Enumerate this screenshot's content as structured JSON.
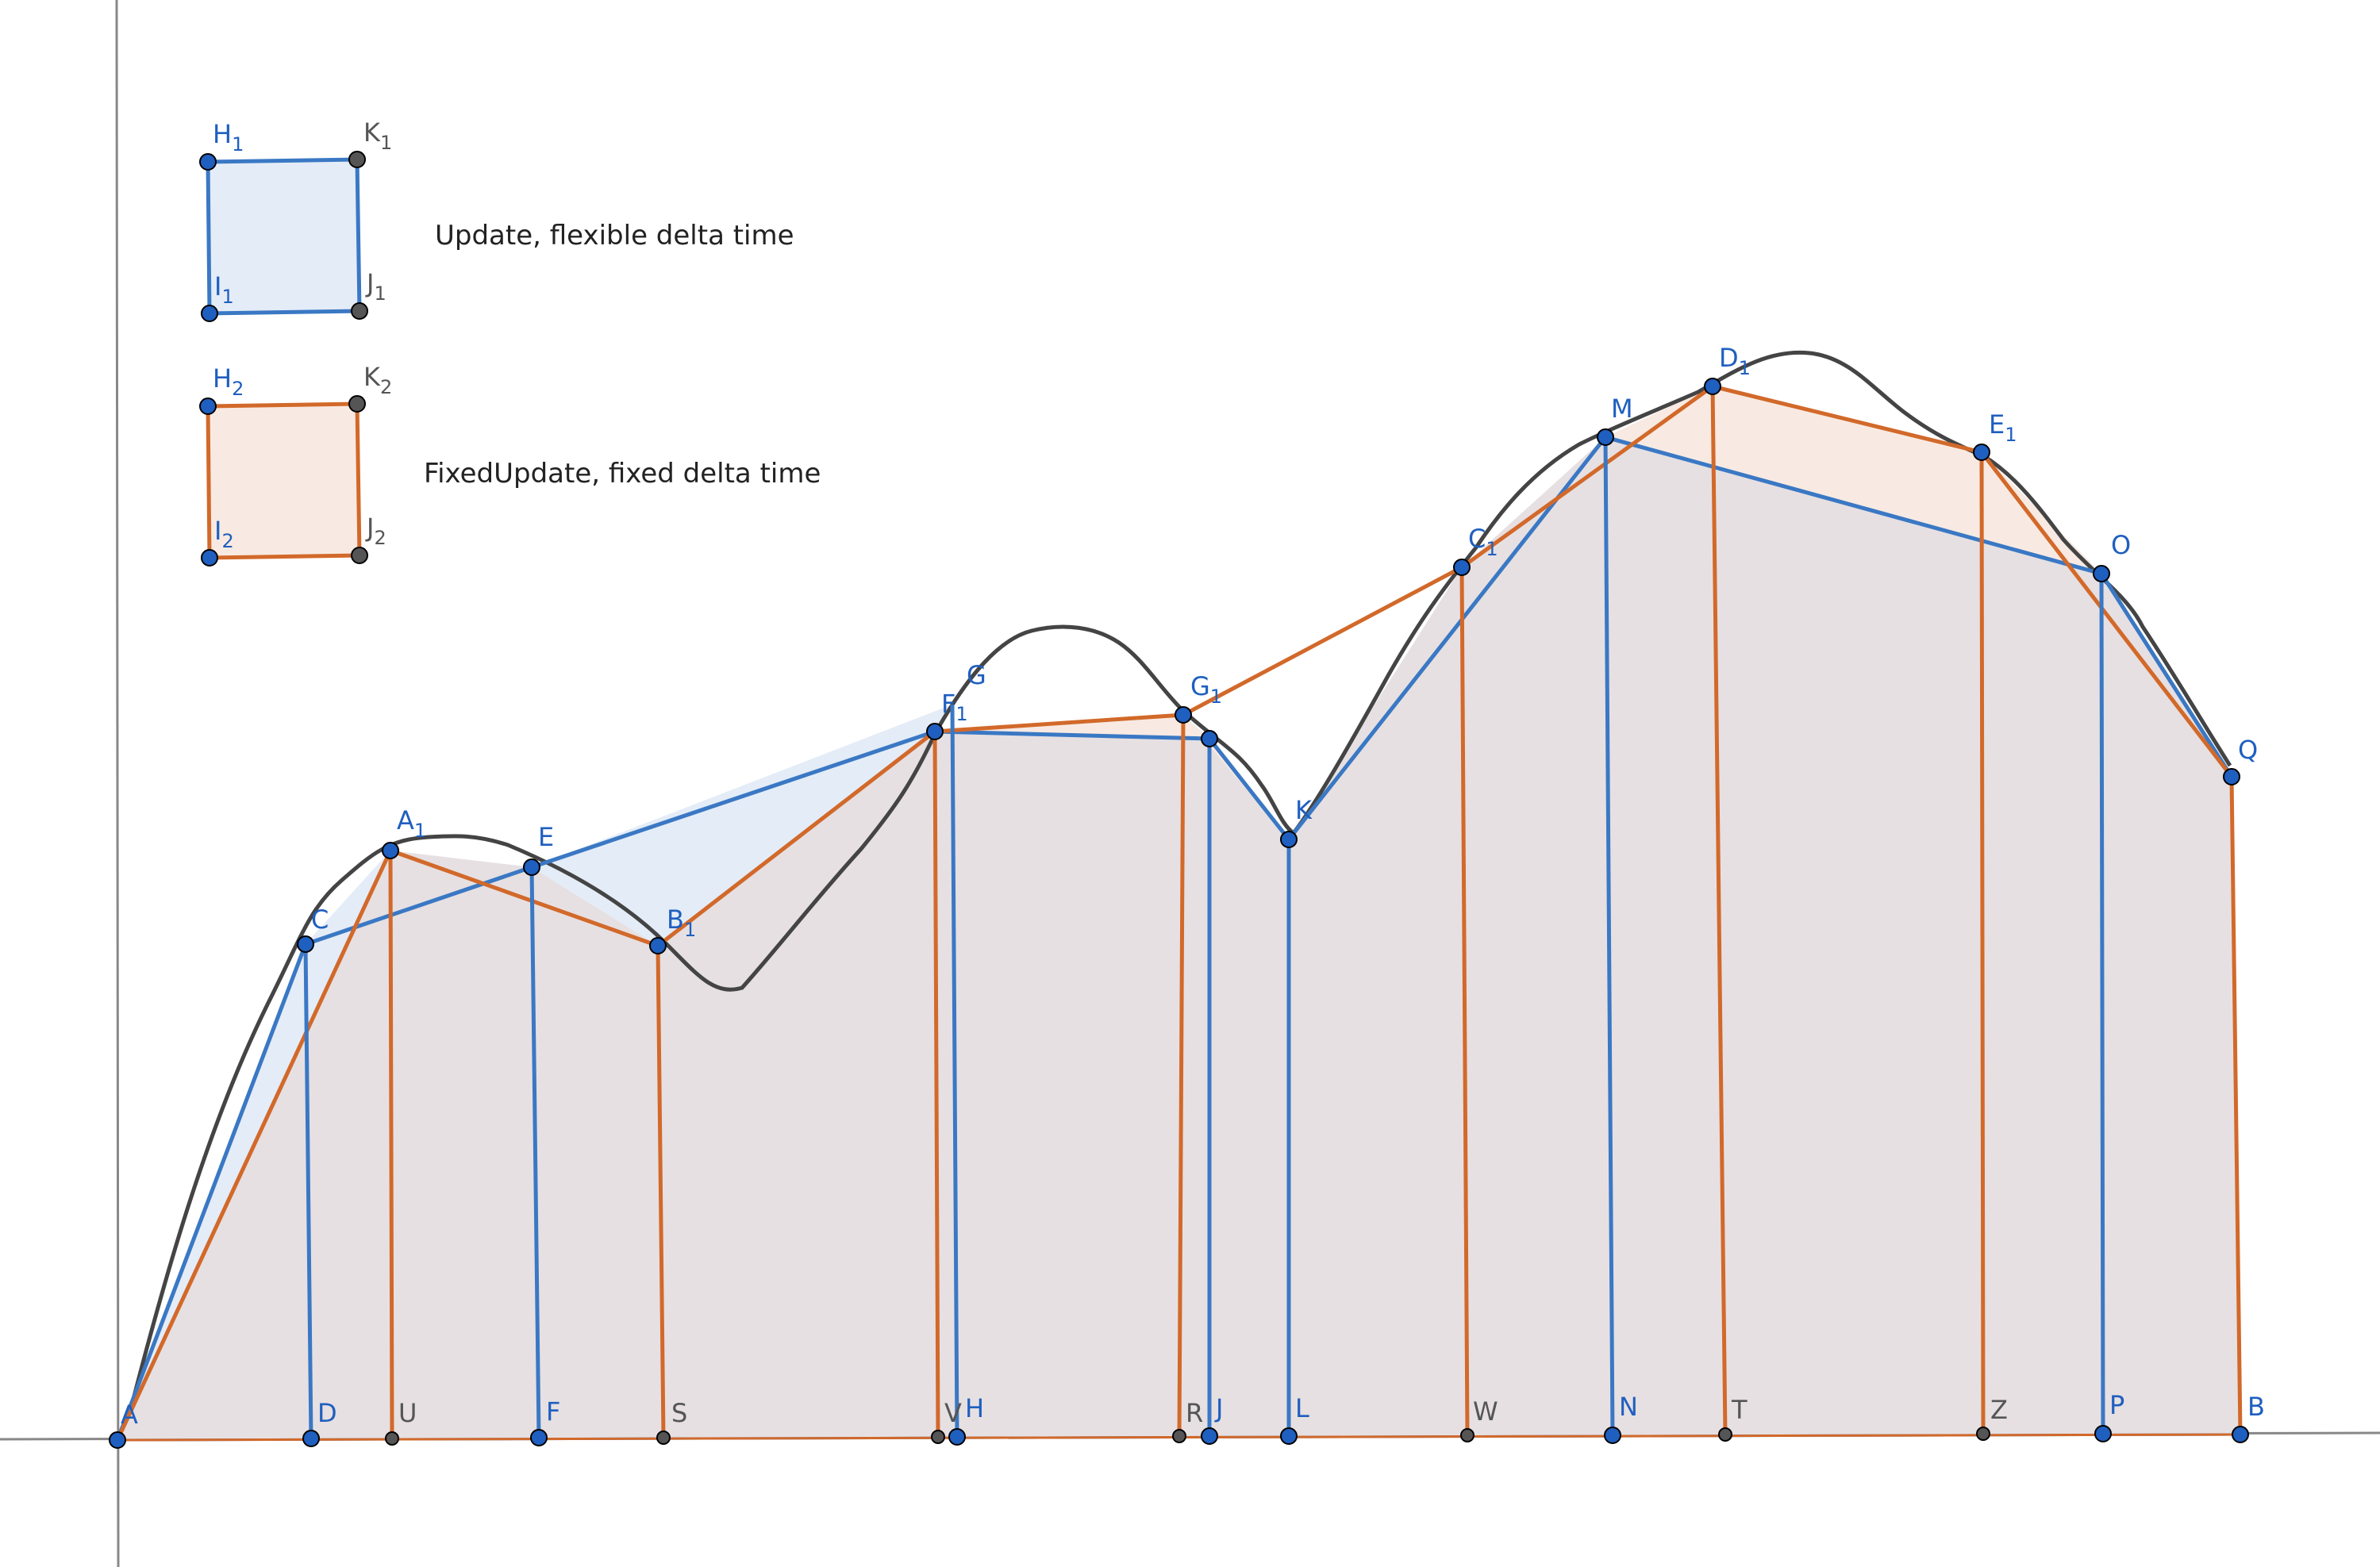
{
  "colors": {
    "flexible": "#3a78c4",
    "fixed": "#d2692a",
    "curve": "#444444",
    "axis": "#888888",
    "area": "#e6e0e2",
    "flexible_fill": "#e4ecf7",
    "fixed_fill": "#f8eae2",
    "point_blue": "#1f5fbf",
    "point_gray": "#555555"
  },
  "legend": {
    "flexible": {
      "text": "Update, flexible delta time",
      "corners": {
        "H": "H",
        "H_sub": "1",
        "K": "K",
        "K_sub": "1",
        "I": "I",
        "I_sub": "1",
        "J": "J",
        "J_sub": "1"
      }
    },
    "fixed": {
      "text": "FixedUpdate, fixed delta time",
      "corners": {
        "H": "H",
        "H_sub": "2",
        "K": "K",
        "K_sub": "2",
        "I": "I",
        "I_sub": "2",
        "J": "J",
        "J_sub": "2"
      }
    }
  },
  "points": {
    "A": "A",
    "B": "B",
    "C": "C",
    "D": "D",
    "E": "E",
    "F": "F",
    "G": "G",
    "H": "H",
    "J": "J",
    "K": "K",
    "L": "L",
    "M": "M",
    "N": "N",
    "O": "O",
    "P": "P",
    "Q": "Q",
    "R": "R",
    "S": "S",
    "T": "T",
    "U": "U",
    "V": "V",
    "W": "W",
    "Z": "Z",
    "A1": "A",
    "B1": "B",
    "C1": "C",
    "D1": "D",
    "E1": "E",
    "F1": "F",
    "G1": "G",
    "sub1": "1"
  }
}
